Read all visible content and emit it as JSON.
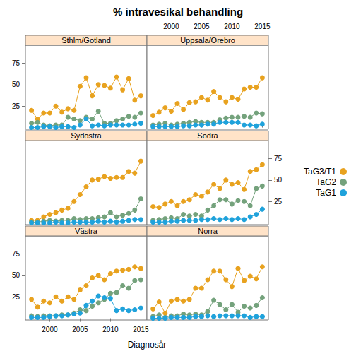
{
  "chart_data": {
    "type": "line",
    "title": "% intravesikal behandling",
    "xlabel": "Diagnosår",
    "x": [
      1997,
      1998,
      1999,
      2000,
      2001,
      2002,
      2003,
      2004,
      2005,
      2006,
      2007,
      2008,
      2009,
      2010,
      2011,
      2012,
      2013,
      2014,
      2015
    ],
    "xlim": [
      1996,
      2016
    ],
    "xticks": [
      2000,
      2005,
      2010,
      2015
    ],
    "ylim": [
      -2,
      96
    ],
    "yticks": [
      25,
      50,
      75
    ],
    "grid": false,
    "legend": "right",
    "marker": "circle",
    "line_style": "solid",
    "panels": [
      {
        "title": "Sthlm/Gotland",
        "series": [
          {
            "name": "TaG3/T1",
            "color": "#E8A21F",
            "values": [
              20,
              10,
              17,
              17,
              25,
              18,
              22,
              20,
              48,
              58,
              37,
              50,
              49,
              46,
              59,
              44,
              57,
              32,
              37
            ]
          },
          {
            "name": "TaG2",
            "color": "#74A27C",
            "values": [
              5,
              6,
              3,
              2,
              3,
              3,
              12,
              10,
              8,
              12,
              10,
              19,
              5,
              5,
              8,
              10,
              13,
              12,
              17
            ]
          },
          {
            "name": "TaG1",
            "color": "#1FA2DB",
            "values": [
              0,
              0,
              1,
              1,
              0,
              1,
              1,
              0,
              3,
              10,
              2,
              3,
              2,
              3,
              3,
              3,
              3,
              4,
              5
            ]
          }
        ]
      },
      {
        "title": "Uppsala/Örebro",
        "series": [
          {
            "name": "TaG3/T1",
            "color": "#E8A21F",
            "values": [
              14,
              18,
              23,
              19,
              28,
              21,
              29,
              30,
              35,
              32,
              42,
              35,
              30,
              35,
              33,
              45,
              47,
              47,
              58
            ]
          },
          {
            "name": "TaG2",
            "color": "#74A27C",
            "values": [
              3,
              4,
              5,
              3,
              4,
              5,
              6,
              7,
              6,
              6,
              6,
              9,
              11,
              12,
              12,
              13,
              12,
              17,
              16
            ]
          },
          {
            "name": "TaG1",
            "color": "#1FA2DB",
            "values": [
              1,
              1,
              1,
              1,
              1,
              2,
              2,
              3,
              3,
              4,
              4,
              6,
              6,
              6,
              6,
              3,
              3,
              2,
              4
            ]
          }
        ]
      },
      {
        "title": "Sydöstra",
        "series": [
          {
            "name": "TaG3/T1",
            "color": "#E8A21F",
            "values": [
              3,
              3,
              7,
              10,
              12,
              15,
              17,
              25,
              33,
              42,
              50,
              51,
              54,
              52,
              53,
              53,
              60,
              58,
              72
            ]
          },
          {
            "name": "TaG2",
            "color": "#74A27C",
            "values": [
              1,
              1,
              2,
              3,
              2,
              3,
              3,
              5,
              4,
              5,
              5,
              6,
              7,
              12,
              7,
              9,
              11,
              15,
              28
            ]
          },
          {
            "name": "TaG1",
            "color": "#1FA2DB",
            "values": [
              0,
              0,
              0,
              0,
              1,
              0,
              0,
              1,
              1,
              1,
              1,
              2,
              1,
              2,
              1,
              2,
              3,
              4,
              4
            ]
          }
        ]
      },
      {
        "title": "Södra",
        "series": [
          {
            "name": "TaG3/T1",
            "color": "#E8A21F",
            "values": [
              19,
              18,
              22,
              25,
              20,
              25,
              27,
              33,
              31,
              36,
              45,
              40,
              50,
              45,
              47,
              39,
              60,
              62,
              68
            ]
          },
          {
            "name": "TaG2",
            "color": "#74A27C",
            "values": [
              3,
              4,
              5,
              6,
              5,
              10,
              8,
              10,
              8,
              15,
              20,
              27,
              27,
              22,
              26,
              25,
              20,
              40,
              43
            ]
          },
          {
            "name": "TaG1",
            "color": "#1FA2DB",
            "values": [
              1,
              1,
              1,
              2,
              2,
              3,
              3,
              3,
              4,
              4,
              5,
              4,
              5,
              4,
              5,
              4,
              7,
              10,
              16
            ]
          }
        ]
      },
      {
        "title": "Västra",
        "series": [
          {
            "name": "TaG3/T1",
            "color": "#E8A21F",
            "values": [
              22,
              13,
              20,
              18,
              25,
              20,
              25,
              22,
              33,
              38,
              47,
              50,
              45,
              52,
              55,
              56,
              57,
              60,
              58
            ]
          },
          {
            "name": "TaG2",
            "color": "#74A27C",
            "values": [
              3,
              2,
              3,
              3,
              3,
              4,
              4,
              6,
              10,
              9,
              14,
              18,
              22,
              29,
              30,
              38,
              35,
              44,
              45
            ]
          },
          {
            "name": "TaG1",
            "color": "#1FA2DB",
            "values": [
              1,
              1,
              1,
              2,
              3,
              3,
              4,
              5,
              6,
              15,
              20,
              26,
              24,
              23,
              9,
              11,
              9,
              10,
              12
            ]
          }
        ]
      },
      {
        "title": "Norra",
        "series": [
          {
            "name": "TaG3/T1",
            "color": "#E8A21F",
            "values": [
              11,
              19,
              6,
              20,
              22,
              20,
              22,
              35,
              35,
              45,
              55,
              55,
              45,
              37,
              58,
              44,
              49,
              46,
              60
            ]
          },
          {
            "name": "TaG2",
            "color": "#74A27C",
            "values": [
              2,
              4,
              1,
              3,
              3,
              5,
              4,
              5,
              4,
              8,
              21,
              16,
              10,
              16,
              7,
              14,
              12,
              15,
              24
            ]
          },
          {
            "name": "TaG1",
            "color": "#1FA2DB",
            "values": [
              0,
              0,
              0,
              1,
              1,
              1,
              1,
              2,
              2,
              3,
              2,
              3,
              3,
              3,
              3,
              3,
              1,
              2,
              2
            ]
          }
        ]
      }
    ]
  }
}
